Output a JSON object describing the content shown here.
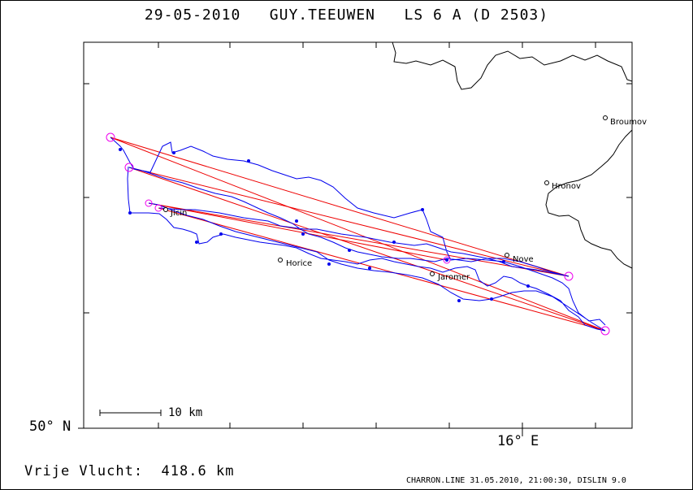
{
  "header": {
    "date": "29-05-2010",
    "pilot": "GUY.TEEUWEN",
    "glider": "LS 6 A (D 2503)"
  },
  "axes": {
    "lat_label": "50° N",
    "lon_label": "16° E"
  },
  "scale_bar": {
    "label": "10 km"
  },
  "towns": [
    {
      "name": "Broumov"
    },
    {
      "name": "Hronov"
    },
    {
      "name": "Nove"
    },
    {
      "name": "Horice"
    },
    {
      "name": "Jaromer"
    },
    {
      "name": "Jicin"
    }
  ],
  "footer": {
    "flight_label": "Vrije Vlucht:",
    "distance": "418.6 km",
    "program_info": "CHARRON.LINE 31.05.2010, 21:00:30, DISLIN 9.0"
  },
  "colors": {
    "track": "#0000ee",
    "task_line": "#ee0000",
    "turnpoint": "#ee00ee",
    "border": "#000000"
  }
}
